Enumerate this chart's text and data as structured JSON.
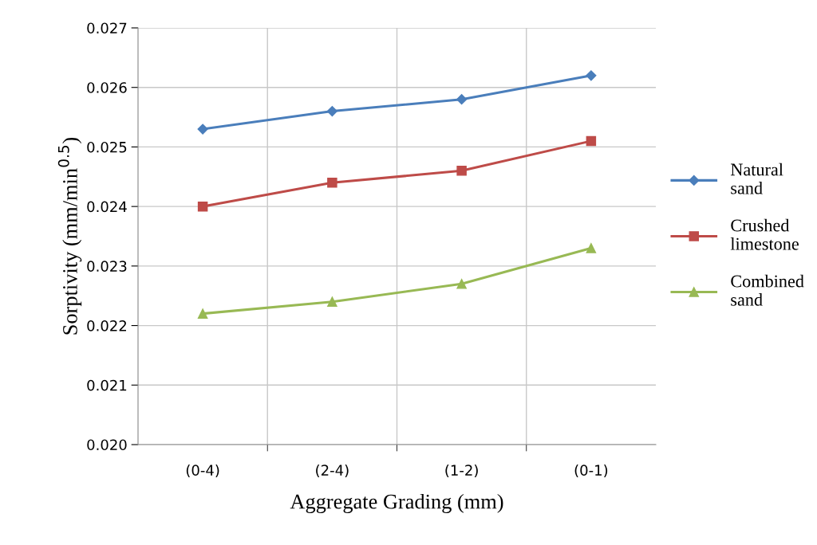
{
  "chart_data": {
    "type": "line",
    "xlabel": "Aggregate Grading (mm)",
    "ylabel": "Sorptivity (mm/min$^{0.5}$)",
    "categories": [
      "(0-4)",
      "(2-4)",
      "(1-2)",
      "(0-1)"
    ],
    "series": [
      {
        "name": "Natural sand",
        "color": "#4a7ebb",
        "marker": "diamond",
        "values": [
          0.0253,
          0.0256,
          0.0258,
          0.0262
        ]
      },
      {
        "name": "Crushed limestone",
        "color": "#be4b48",
        "marker": "square",
        "values": [
          0.024,
          0.0244,
          0.0246,
          0.0251
        ]
      },
      {
        "name": "Combined sand",
        "color": "#98b954",
        "marker": "triangle",
        "values": [
          0.0222,
          0.0224,
          0.0227,
          0.0233
        ]
      }
    ],
    "ylim": [
      0.02,
      0.027
    ],
    "yticks": [
      {
        "value": 0.02,
        "label": "0.020"
      },
      {
        "value": 0.021,
        "label": "0.021"
      },
      {
        "value": 0.022,
        "label": "0.022"
      },
      {
        "value": 0.023,
        "label": "0.023"
      },
      {
        "value": 0.024,
        "label": "0.024"
      },
      {
        "value": 0.025,
        "label": "0.025"
      },
      {
        "value": 0.026,
        "label": "0.026"
      },
      {
        "value": 0.027,
        "label": "0.027"
      }
    ],
    "grid": true,
    "legend": "right",
    "line_style": "solid"
  }
}
